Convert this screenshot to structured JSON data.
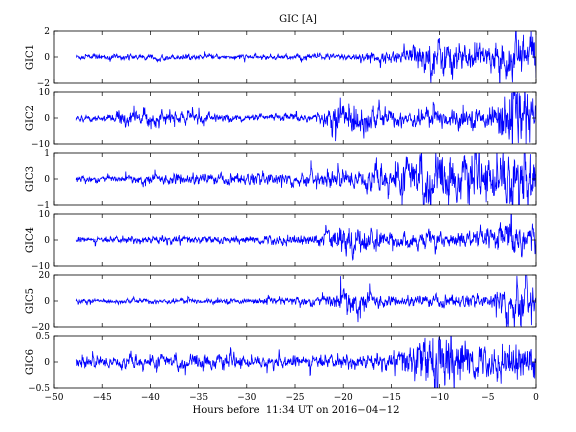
{
  "chart_data": {
    "type": "line",
    "title": "GIC [A]",
    "xlabel": "Hours before  11:34 UT on 2016−04−12",
    "xlim": [
      -50,
      0
    ],
    "x_ticks": [
      -50,
      -45,
      -40,
      -35,
      -30,
      -25,
      -20,
      -15,
      -10,
      -5,
      0
    ],
    "x_tick_labels": [
      "−50",
      "−45",
      "−40",
      "−35",
      "−30",
      "−25",
      "−20",
      "−15",
      "−10",
      "−5",
      "0"
    ],
    "data_start": -47.7,
    "line_color": "#0000ff",
    "panels": [
      {
        "ylabel": "GIC1",
        "ylim": [
          -2,
          2
        ],
        "yticks": [
          -2,
          0,
          2
        ],
        "ytick_labels": [
          "−2",
          "0",
          "2"
        ],
        "series": [
          {
            "hour": -45,
            "amp": 0.1
          },
          {
            "hour": -30,
            "amp": 0.08
          },
          {
            "hour": -20,
            "amp": 0.12
          },
          {
            "hour": -15,
            "amp": 0.2
          },
          {
            "hour": -10,
            "amp": 0.7
          },
          {
            "hour": -5,
            "amp": 0.4
          },
          {
            "hour": -2,
            "amp": 0.9
          },
          {
            "hour": 0,
            "amp": 1.0
          }
        ]
      },
      {
        "ylabel": "GIC2",
        "ylim": [
          -10,
          10
        ],
        "yticks": [
          -10,
          0,
          10
        ],
        "ytick_labels": [
          "−10",
          "0",
          "10"
        ],
        "series": [
          {
            "hour": -45,
            "amp": 0.5
          },
          {
            "hour": -42,
            "amp": 1.5
          },
          {
            "hour": -37,
            "amp": 1.2
          },
          {
            "hour": -30,
            "amp": 0.5
          },
          {
            "hour": -22,
            "amp": 1.0
          },
          {
            "hour": -20,
            "amp": 3.5
          },
          {
            "hour": -15,
            "amp": 1.5
          },
          {
            "hour": -10,
            "amp": 1.8
          },
          {
            "hour": -5,
            "amp": 1.5
          },
          {
            "hour": -2,
            "amp": 6
          },
          {
            "hour": 0,
            "amp": 4
          }
        ]
      },
      {
        "ylabel": "GIC3",
        "ylim": [
          -1,
          1
        ],
        "yticks": [
          -1,
          0,
          1
        ],
        "ytick_labels": [
          "−1",
          "0",
          "1"
        ],
        "series": [
          {
            "hour": -45,
            "amp": 0.06
          },
          {
            "hour": -40,
            "amp": 0.08
          },
          {
            "hour": -35,
            "amp": 0.1
          },
          {
            "hour": -25,
            "amp": 0.12
          },
          {
            "hour": -20,
            "amp": 0.15
          },
          {
            "hour": -15,
            "amp": 0.25
          },
          {
            "hour": -11,
            "amp": 0.5
          },
          {
            "hour": -9,
            "amp": 0.4
          },
          {
            "hour": -5,
            "amp": 0.35
          },
          {
            "hour": -2,
            "amp": 0.6
          },
          {
            "hour": 0,
            "amp": 0.5
          }
        ]
      },
      {
        "ylabel": "GIC4",
        "ylim": [
          -10,
          10
        ],
        "yticks": [
          -10,
          0,
          10
        ],
        "ytick_labels": [
          "−10",
          "0",
          "10"
        ],
        "series": [
          {
            "hour": -45,
            "amp": 0.5
          },
          {
            "hour": -38,
            "amp": 0.8
          },
          {
            "hour": -30,
            "amp": 0.6
          },
          {
            "hour": -22,
            "amp": 1.2
          },
          {
            "hour": -20,
            "amp": 3
          },
          {
            "hour": -15,
            "amp": 1.2
          },
          {
            "hour": -10,
            "amp": 1.5
          },
          {
            "hour": -5,
            "amp": 1.5
          },
          {
            "hour": -2,
            "amp": 4
          },
          {
            "hour": 0,
            "amp": 2.5
          }
        ]
      },
      {
        "ylabel": "GIC5",
        "ylim": [
          -20,
          20
        ],
        "yticks": [
          -20,
          0,
          20
        ],
        "ytick_labels": [
          "−20",
          "0",
          "20"
        ],
        "series": [
          {
            "hour": -45,
            "amp": 0.8
          },
          {
            "hour": -38,
            "amp": 1
          },
          {
            "hour": -30,
            "amp": 0.8
          },
          {
            "hour": -22,
            "amp": 2
          },
          {
            "hour": -20,
            "amp": 5
          },
          {
            "hour": -15,
            "amp": 1.5
          },
          {
            "hour": -10,
            "amp": 2.5
          },
          {
            "hour": -5,
            "amp": 2
          },
          {
            "hour": -2,
            "amp": 10
          },
          {
            "hour": 0,
            "amp": 5
          }
        ]
      },
      {
        "ylabel": "GIC6",
        "ylim": [
          -0.5,
          0.5
        ],
        "yticks": [
          -0.5,
          0,
          0.5
        ],
        "ytick_labels": [
          "−0.5",
          "0",
          "0.5"
        ],
        "series": [
          {
            "hour": -46,
            "amp": 0.05
          },
          {
            "hour": -40,
            "amp": 0.06
          },
          {
            "hour": -35,
            "amp": 0.07
          },
          {
            "hour": -30,
            "amp": 0.05
          },
          {
            "hour": -20,
            "amp": 0.06
          },
          {
            "hour": -15,
            "amp": 0.08
          },
          {
            "hour": -10,
            "amp": 0.3
          },
          {
            "hour": -8,
            "amp": 0.2
          },
          {
            "hour": -5,
            "amp": 0.12
          },
          {
            "hour": -2,
            "amp": 0.2
          },
          {
            "hour": 0,
            "amp": 0.15
          }
        ]
      }
    ]
  }
}
